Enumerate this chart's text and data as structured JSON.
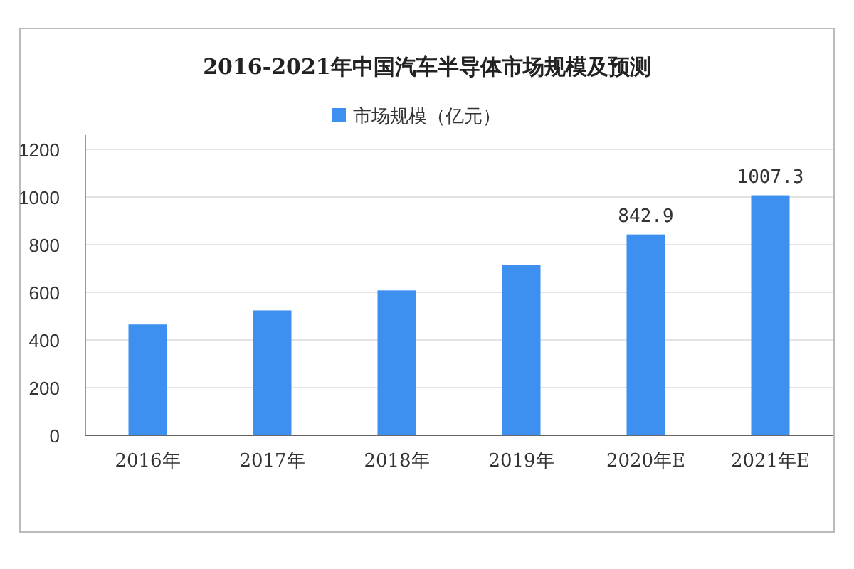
{
  "chart_data": {
    "type": "bar",
    "title": "2016-2021年中国汽车半导体市场规模及预测",
    "categories": [
      "2016年",
      "2017年",
      "2018年",
      "2019年",
      "2020年E",
      "2021年E"
    ],
    "series": [
      {
        "name": "市场规模（亿元）",
        "color": "#3d8ff0",
        "values": [
          465,
          524,
          608,
          715,
          842.9,
          1007.3
        ],
        "value_labels": [
          null,
          null,
          null,
          null,
          "842.9",
          "1007.3"
        ]
      }
    ],
    "ylim": [
      0,
      1200
    ],
    "yticks": [
      0,
      200,
      400,
      600,
      800,
      1000,
      1200
    ],
    "grid": "y",
    "legend": "top"
  }
}
